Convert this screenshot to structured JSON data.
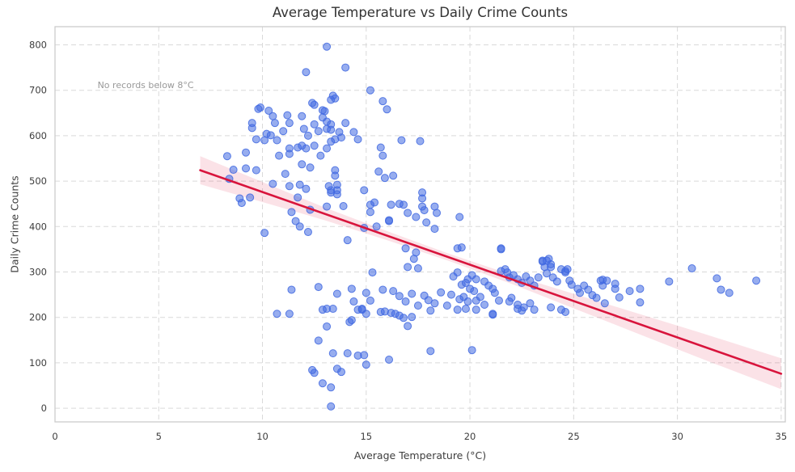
{
  "chart_data": {
    "type": "scatter",
    "title": "Average Temperature vs Daily Crime Counts",
    "xlabel": "Average Temperature (°C)",
    "ylabel": "Daily Crime Counts",
    "xlim": [
      0,
      35.2
    ],
    "ylim": [
      -30,
      840
    ],
    "x_ticks": [
      0,
      5,
      10,
      15,
      20,
      25,
      30,
      35
    ],
    "y_ticks": [
      0,
      100,
      200,
      300,
      400,
      500,
      600,
      700,
      800
    ],
    "grid": "dashed both axes",
    "legend": "none",
    "annotation": {
      "text": "No records below 8°C",
      "x": 2.05,
      "y": 712
    },
    "colors": {
      "point_fill": "#4169e1",
      "point_opacity": 0.55,
      "regression_line": "#d8143c",
      "confidence_band": "#dc143c",
      "band_opacity": 0.12,
      "grid": "#d9d9d9",
      "spine": "#cccccc",
      "title_text": "#333333",
      "tick_text": "#3d3d3d",
      "annotation_text": "#999999"
    },
    "regression_line": {
      "x": [
        7.0,
        35.0
      ],
      "y": [
        524,
        76
      ]
    },
    "confidence_band": {
      "x": [
        7,
        10,
        13,
        16,
        19,
        22,
        25,
        28,
        31,
        35
      ],
      "upper": [
        555,
        498,
        442,
        390,
        340,
        294,
        252,
        210,
        168,
        110
      ],
      "lower": [
        493,
        454,
        414,
        370,
        324,
        274,
        220,
        166,
        112,
        42
      ]
    },
    "points": [
      [
        13.1,
        796
      ],
      [
        14.0,
        750
      ],
      [
        12.1,
        740
      ],
      [
        15.2,
        700
      ],
      [
        13.4,
        688
      ],
      [
        13.5,
        682
      ],
      [
        12.5,
        668
      ],
      [
        12.4,
        672
      ],
      [
        13.3,
        679
      ],
      [
        13.0,
        654
      ],
      [
        12.9,
        656
      ],
      [
        15.8,
        676
      ],
      [
        16.0,
        658
      ],
      [
        9.9,
        662
      ],
      [
        9.8,
        659
      ],
      [
        10.3,
        655
      ],
      [
        10.5,
        643
      ],
      [
        11.2,
        645
      ],
      [
        11.9,
        643
      ],
      [
        10.6,
        628
      ],
      [
        11.3,
        628
      ],
      [
        13.1,
        631
      ],
      [
        13.3,
        625
      ],
      [
        12.5,
        625
      ],
      [
        14.0,
        628
      ],
      [
        9.5,
        628
      ],
      [
        13.1,
        615
      ],
      [
        13.3,
        613
      ],
      [
        12.7,
        610
      ],
      [
        11.0,
        610
      ],
      [
        13.7,
        608
      ],
      [
        14.4,
        608
      ],
      [
        10.2,
        604
      ],
      [
        10.4,
        601
      ],
      [
        13.8,
        596
      ],
      [
        9.7,
        592
      ],
      [
        10.1,
        590
      ],
      [
        10.7,
        590
      ],
      [
        14.6,
        592
      ],
      [
        9.5,
        617
      ],
      [
        11.7,
        574
      ],
      [
        11.9,
        578
      ],
      [
        12.1,
        572
      ],
      [
        12.5,
        578
      ],
      [
        13.1,
        572
      ],
      [
        13.3,
        587
      ],
      [
        11.3,
        572
      ],
      [
        16.7,
        590
      ],
      [
        17.6,
        588
      ],
      [
        15.7,
        574
      ],
      [
        15.8,
        556
      ],
      [
        10.8,
        556
      ],
      [
        12.8,
        556
      ],
      [
        11.3,
        560
      ],
      [
        8.3,
        555
      ],
      [
        13.5,
        592
      ],
      [
        12.2,
        600
      ],
      [
        12.0,
        615
      ],
      [
        12.9,
        640
      ],
      [
        11.9,
        537
      ],
      [
        12.3,
        530
      ],
      [
        9.2,
        563
      ],
      [
        9.2,
        528
      ],
      [
        9.7,
        524
      ],
      [
        11.1,
        516
      ],
      [
        13.5,
        524
      ],
      [
        13.5,
        512
      ],
      [
        15.6,
        521
      ],
      [
        15.9,
        507
      ],
      [
        16.3,
        512
      ],
      [
        11.3,
        489
      ],
      [
        11.8,
        492
      ],
      [
        12.1,
        483
      ],
      [
        13.2,
        489
      ],
      [
        13.3,
        480
      ],
      [
        13.6,
        480
      ],
      [
        13.6,
        492
      ],
      [
        14.9,
        480
      ],
      [
        15.4,
        453
      ],
      [
        8.6,
        525
      ],
      [
        8.9,
        462
      ],
      [
        9.0,
        452
      ],
      [
        9.4,
        464
      ],
      [
        11.7,
        464
      ],
      [
        13.6,
        471
      ],
      [
        10.5,
        494
      ],
      [
        13.3,
        475
      ],
      [
        17.7,
        475
      ],
      [
        8.4,
        505
      ],
      [
        16.6,
        450
      ],
      [
        16.8,
        448
      ],
      [
        17.7,
        462
      ],
      [
        17.7,
        444
      ],
      [
        15.2,
        448
      ],
      [
        16.2,
        448
      ],
      [
        13.1,
        444
      ],
      [
        12.3,
        437
      ],
      [
        11.4,
        432
      ],
      [
        17.0,
        430
      ],
      [
        18.3,
        444
      ],
      [
        18.4,
        430
      ],
      [
        15.2,
        432
      ],
      [
        17.4,
        421
      ],
      [
        17.8,
        436
      ],
      [
        19.5,
        421
      ],
      [
        16.1,
        414
      ],
      [
        17.9,
        409
      ],
      [
        11.6,
        412
      ],
      [
        16.1,
        412
      ],
      [
        11.8,
        400
      ],
      [
        15.5,
        400
      ],
      [
        14.9,
        397
      ],
      [
        18.3,
        395
      ],
      [
        12.2,
        388
      ],
      [
        10.1,
        386
      ],
      [
        13.9,
        445
      ],
      [
        14.1,
        370
      ],
      [
        21.5,
        350
      ],
      [
        19.4,
        352
      ],
      [
        17.4,
        343
      ],
      [
        17.3,
        329
      ],
      [
        17.0,
        311
      ],
      [
        17.5,
        308
      ],
      [
        19.6,
        354
      ],
      [
        21.5,
        352
      ],
      [
        15.3,
        299
      ],
      [
        23.5,
        325
      ],
      [
        23.8,
        329
      ],
      [
        23.6,
        311
      ],
      [
        23.9,
        311
      ],
      [
        24.6,
        302
      ],
      [
        24.7,
        306
      ],
      [
        21.8,
        299
      ],
      [
        21.7,
        306
      ],
      [
        30.7,
        308
      ],
      [
        23.5,
        323
      ],
      [
        23.7,
        325
      ],
      [
        23.9,
        317
      ],
      [
        16.9,
        352
      ],
      [
        19.4,
        299
      ],
      [
        19.2,
        290
      ],
      [
        19.6,
        272
      ],
      [
        19.8,
        276
      ],
      [
        19.9,
        284
      ],
      [
        20.1,
        293
      ],
      [
        20.3,
        284
      ],
      [
        20.0,
        263
      ],
      [
        20.2,
        258
      ],
      [
        19.7,
        245
      ],
      [
        19.5,
        240
      ],
      [
        19.9,
        235
      ],
      [
        20.3,
        237
      ],
      [
        20.5,
        245
      ],
      [
        20.7,
        279
      ],
      [
        20.9,
        270
      ],
      [
        21.1,
        263
      ],
      [
        21.2,
        254
      ],
      [
        21.5,
        302
      ],
      [
        21.9,
        288
      ],
      [
        22.1,
        293
      ],
      [
        22.3,
        284
      ],
      [
        22.5,
        276
      ],
      [
        22.7,
        290
      ],
      [
        22.9,
        281
      ],
      [
        23.1,
        270
      ],
      [
        23.3,
        288
      ],
      [
        23.7,
        297
      ],
      [
        24.0,
        288
      ],
      [
        24.2,
        279
      ],
      [
        24.4,
        306
      ],
      [
        24.6,
        299
      ],
      [
        24.8,
        281
      ],
      [
        24.9,
        272
      ],
      [
        25.2,
        263
      ],
      [
        25.3,
        254
      ],
      [
        25.5,
        270
      ],
      [
        25.7,
        261
      ],
      [
        25.9,
        249
      ],
      [
        26.1,
        243
      ],
      [
        22.3,
        228
      ],
      [
        22.6,
        222
      ],
      [
        22.9,
        231
      ],
      [
        23.1,
        217
      ],
      [
        21.1,
        208
      ],
      [
        20.7,
        228
      ],
      [
        21.4,
        237
      ],
      [
        21.9,
        235
      ],
      [
        22.0,
        243
      ],
      [
        26.3,
        281
      ],
      [
        26.4,
        283
      ],
      [
        26.6,
        281
      ],
      [
        26.4,
        270
      ],
      [
        27.0,
        274
      ],
      [
        27.0,
        263
      ],
      [
        27.7,
        258
      ],
      [
        28.2,
        263
      ],
      [
        27.2,
        244
      ],
      [
        26.5,
        231
      ],
      [
        28.2,
        233
      ],
      [
        29.6,
        279
      ],
      [
        31.9,
        286
      ],
      [
        32.1,
        261
      ],
      [
        32.5,
        254
      ],
      [
        33.8,
        281
      ],
      [
        16.3,
        258
      ],
      [
        16.6,
        247
      ],
      [
        16.9,
        235
      ],
      [
        17.2,
        252
      ],
      [
        17.5,
        226
      ],
      [
        17.8,
        248
      ],
      [
        18.0,
        238
      ],
      [
        18.3,
        231
      ],
      [
        18.6,
        255
      ],
      [
        18.9,
        226
      ],
      [
        19.1,
        250
      ],
      [
        12.7,
        267
      ],
      [
        11.4,
        261
      ],
      [
        13.6,
        252
      ],
      [
        14.4,
        235
      ],
      [
        15.2,
        237
      ],
      [
        15.0,
        254
      ],
      [
        14.3,
        263
      ],
      [
        15.8,
        261
      ],
      [
        10.7,
        208
      ],
      [
        11.3,
        208
      ],
      [
        12.9,
        217
      ],
      [
        13.4,
        219
      ],
      [
        14.2,
        190
      ],
      [
        14.3,
        194
      ],
      [
        14.6,
        217
      ],
      [
        14.8,
        217
      ],
      [
        15.0,
        208
      ],
      [
        15.7,
        212
      ],
      [
        15.9,
        213
      ],
      [
        16.2,
        210
      ],
      [
        16.4,
        208
      ],
      [
        16.6,
        204
      ],
      [
        16.8,
        199
      ],
      [
        17.2,
        201
      ],
      [
        17.0,
        181
      ],
      [
        18.1,
        215
      ],
      [
        19.4,
        217
      ],
      [
        19.8,
        219
      ],
      [
        20.3,
        217
      ],
      [
        21.1,
        206
      ],
      [
        22.3,
        219
      ],
      [
        22.5,
        215
      ],
      [
        23.9,
        222
      ],
      [
        24.4,
        217
      ],
      [
        24.6,
        212
      ],
      [
        13.1,
        219
      ],
      [
        14.8,
        219
      ],
      [
        13.1,
        180
      ],
      [
        12.7,
        149
      ],
      [
        13.4,
        121
      ],
      [
        14.1,
        121
      ],
      [
        14.6,
        116
      ],
      [
        14.9,
        117
      ],
      [
        16.1,
        107
      ],
      [
        15.0,
        96
      ],
      [
        12.5,
        78
      ],
      [
        13.6,
        87
      ],
      [
        13.8,
        80
      ],
      [
        12.9,
        55
      ],
      [
        13.3,
        46
      ],
      [
        13.3,
        4
      ],
      [
        18.1,
        126
      ],
      [
        20.1,
        128
      ],
      [
        12.4,
        84
      ]
    ]
  }
}
